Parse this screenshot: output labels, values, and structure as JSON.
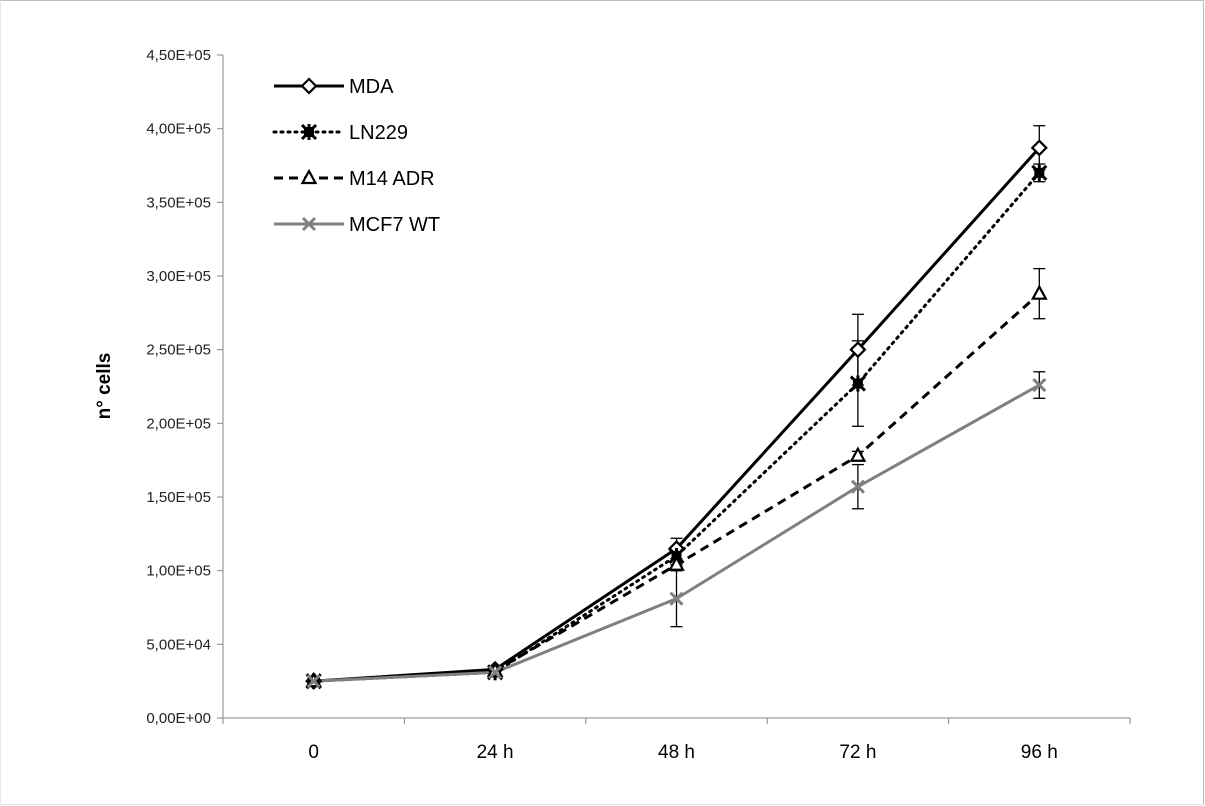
{
  "chart_data": {
    "type": "line",
    "title": "",
    "xlabel": "",
    "ylabel": "n° cells",
    "categories": [
      "0",
      "24 h",
      "48 h",
      "72 h",
      "96 h"
    ],
    "ylim": [
      0,
      450000
    ],
    "yticks": [
      0,
      50000,
      100000,
      150000,
      200000,
      250000,
      300000,
      350000,
      400000,
      450000
    ],
    "ytick_labels": [
      "0,00E+00",
      "5,00E+04",
      "1,00E+05",
      "1,50E+05",
      "2,00E+05",
      "2,50E+05",
      "3,00E+05",
      "3,50E+05",
      "4,00E+05",
      "4,50E+05"
    ],
    "grid": false,
    "legend_position": "top-left",
    "series": [
      {
        "name": "MDA",
        "values": [
          25000,
          33000,
          115000,
          250000,
          387000
        ],
        "errors": [
          2000,
          2000,
          7000,
          24000,
          15000
        ],
        "color": "#000000",
        "dash": "solid",
        "marker": "diamond"
      },
      {
        "name": "LN229",
        "values": [
          25000,
          31000,
          110000,
          227000,
          370000
        ],
        "errors": [
          2000,
          3000,
          6000,
          29000,
          6000
        ],
        "color": "#000000",
        "dash": "dotted",
        "marker": "star"
      },
      {
        "name": "M14 ADR",
        "values": [
          25000,
          32000,
          104000,
          178000,
          288000
        ],
        "errors": [
          2000,
          2000,
          4000,
          3000,
          17000
        ],
        "color": "#000000",
        "dash": "dashed",
        "marker": "triangle"
      },
      {
        "name": "MCF7 WT",
        "values": [
          25000,
          31000,
          81000,
          157000,
          226000
        ],
        "errors": [
          2000,
          2000,
          19000,
          15000,
          9000
        ],
        "color": "#808080",
        "dash": "solid",
        "marker": "x"
      }
    ]
  }
}
